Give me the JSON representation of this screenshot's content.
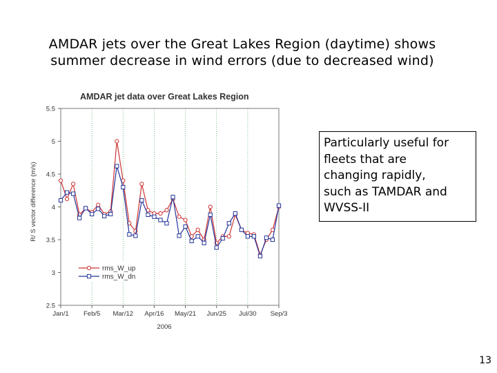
{
  "slide": {
    "title_lines": [
      "AMDAR jets over the Great Lakes Region (daytime) shows",
      "summer decrease in wind errors (due to decreased wind)"
    ],
    "callout_lines": [
      "Particularly useful for",
      "fleets that are",
      "changing rapidly,",
      "such as TAMDAR and",
      "WVSS-II"
    ],
    "page_number": "13"
  },
  "chart_data": {
    "type": "line",
    "title": "AMDAR jet data over Great Lakes Region",
    "xlabel": "2006",
    "ylabel": "R/ S vector difference (m/s)",
    "ylim": [
      2.5,
      5.5
    ],
    "yticks": [
      "2.5",
      "3",
      "3.5",
      "4",
      "4.5",
      "5",
      "5.5"
    ],
    "xticks": [
      "Jan/1",
      "Feb/5",
      "Mar/12",
      "Apr/16",
      "May/21",
      "Jun/25",
      "Jul/30",
      "Sep/3"
    ],
    "grid": "dotted vertical",
    "legend_position": "bottom-left",
    "colors": {
      "rms_W_up": "#cc3333",
      "rms_W_dn": "#223399"
    },
    "series": [
      {
        "name": "rms_W_up",
        "marker": "circle",
        "values": [
          4.4,
          4.12,
          4.35,
          3.88,
          3.98,
          3.92,
          4.03,
          3.89,
          3.93,
          5.0,
          4.4,
          3.75,
          3.63,
          4.35,
          3.95,
          3.9,
          3.9,
          3.95,
          4.12,
          3.85,
          3.8,
          3.55,
          3.65,
          3.5,
          4.0,
          3.45,
          3.55,
          3.55,
          3.88,
          3.65,
          3.6,
          3.58,
          3.27,
          3.5,
          3.65,
          4.0
        ]
      },
      {
        "name": "rms_W_dn",
        "marker": "square",
        "values": [
          4.1,
          4.22,
          4.2,
          3.83,
          3.98,
          3.89,
          3.97,
          3.86,
          3.89,
          4.62,
          4.3,
          3.58,
          3.56,
          4.1,
          3.88,
          3.85,
          3.8,
          3.75,
          4.15,
          3.56,
          3.7,
          3.48,
          3.55,
          3.45,
          3.88,
          3.38,
          3.52,
          3.75,
          3.9,
          3.65,
          3.55,
          3.55,
          3.25,
          3.53,
          3.5,
          4.02
        ]
      }
    ]
  }
}
